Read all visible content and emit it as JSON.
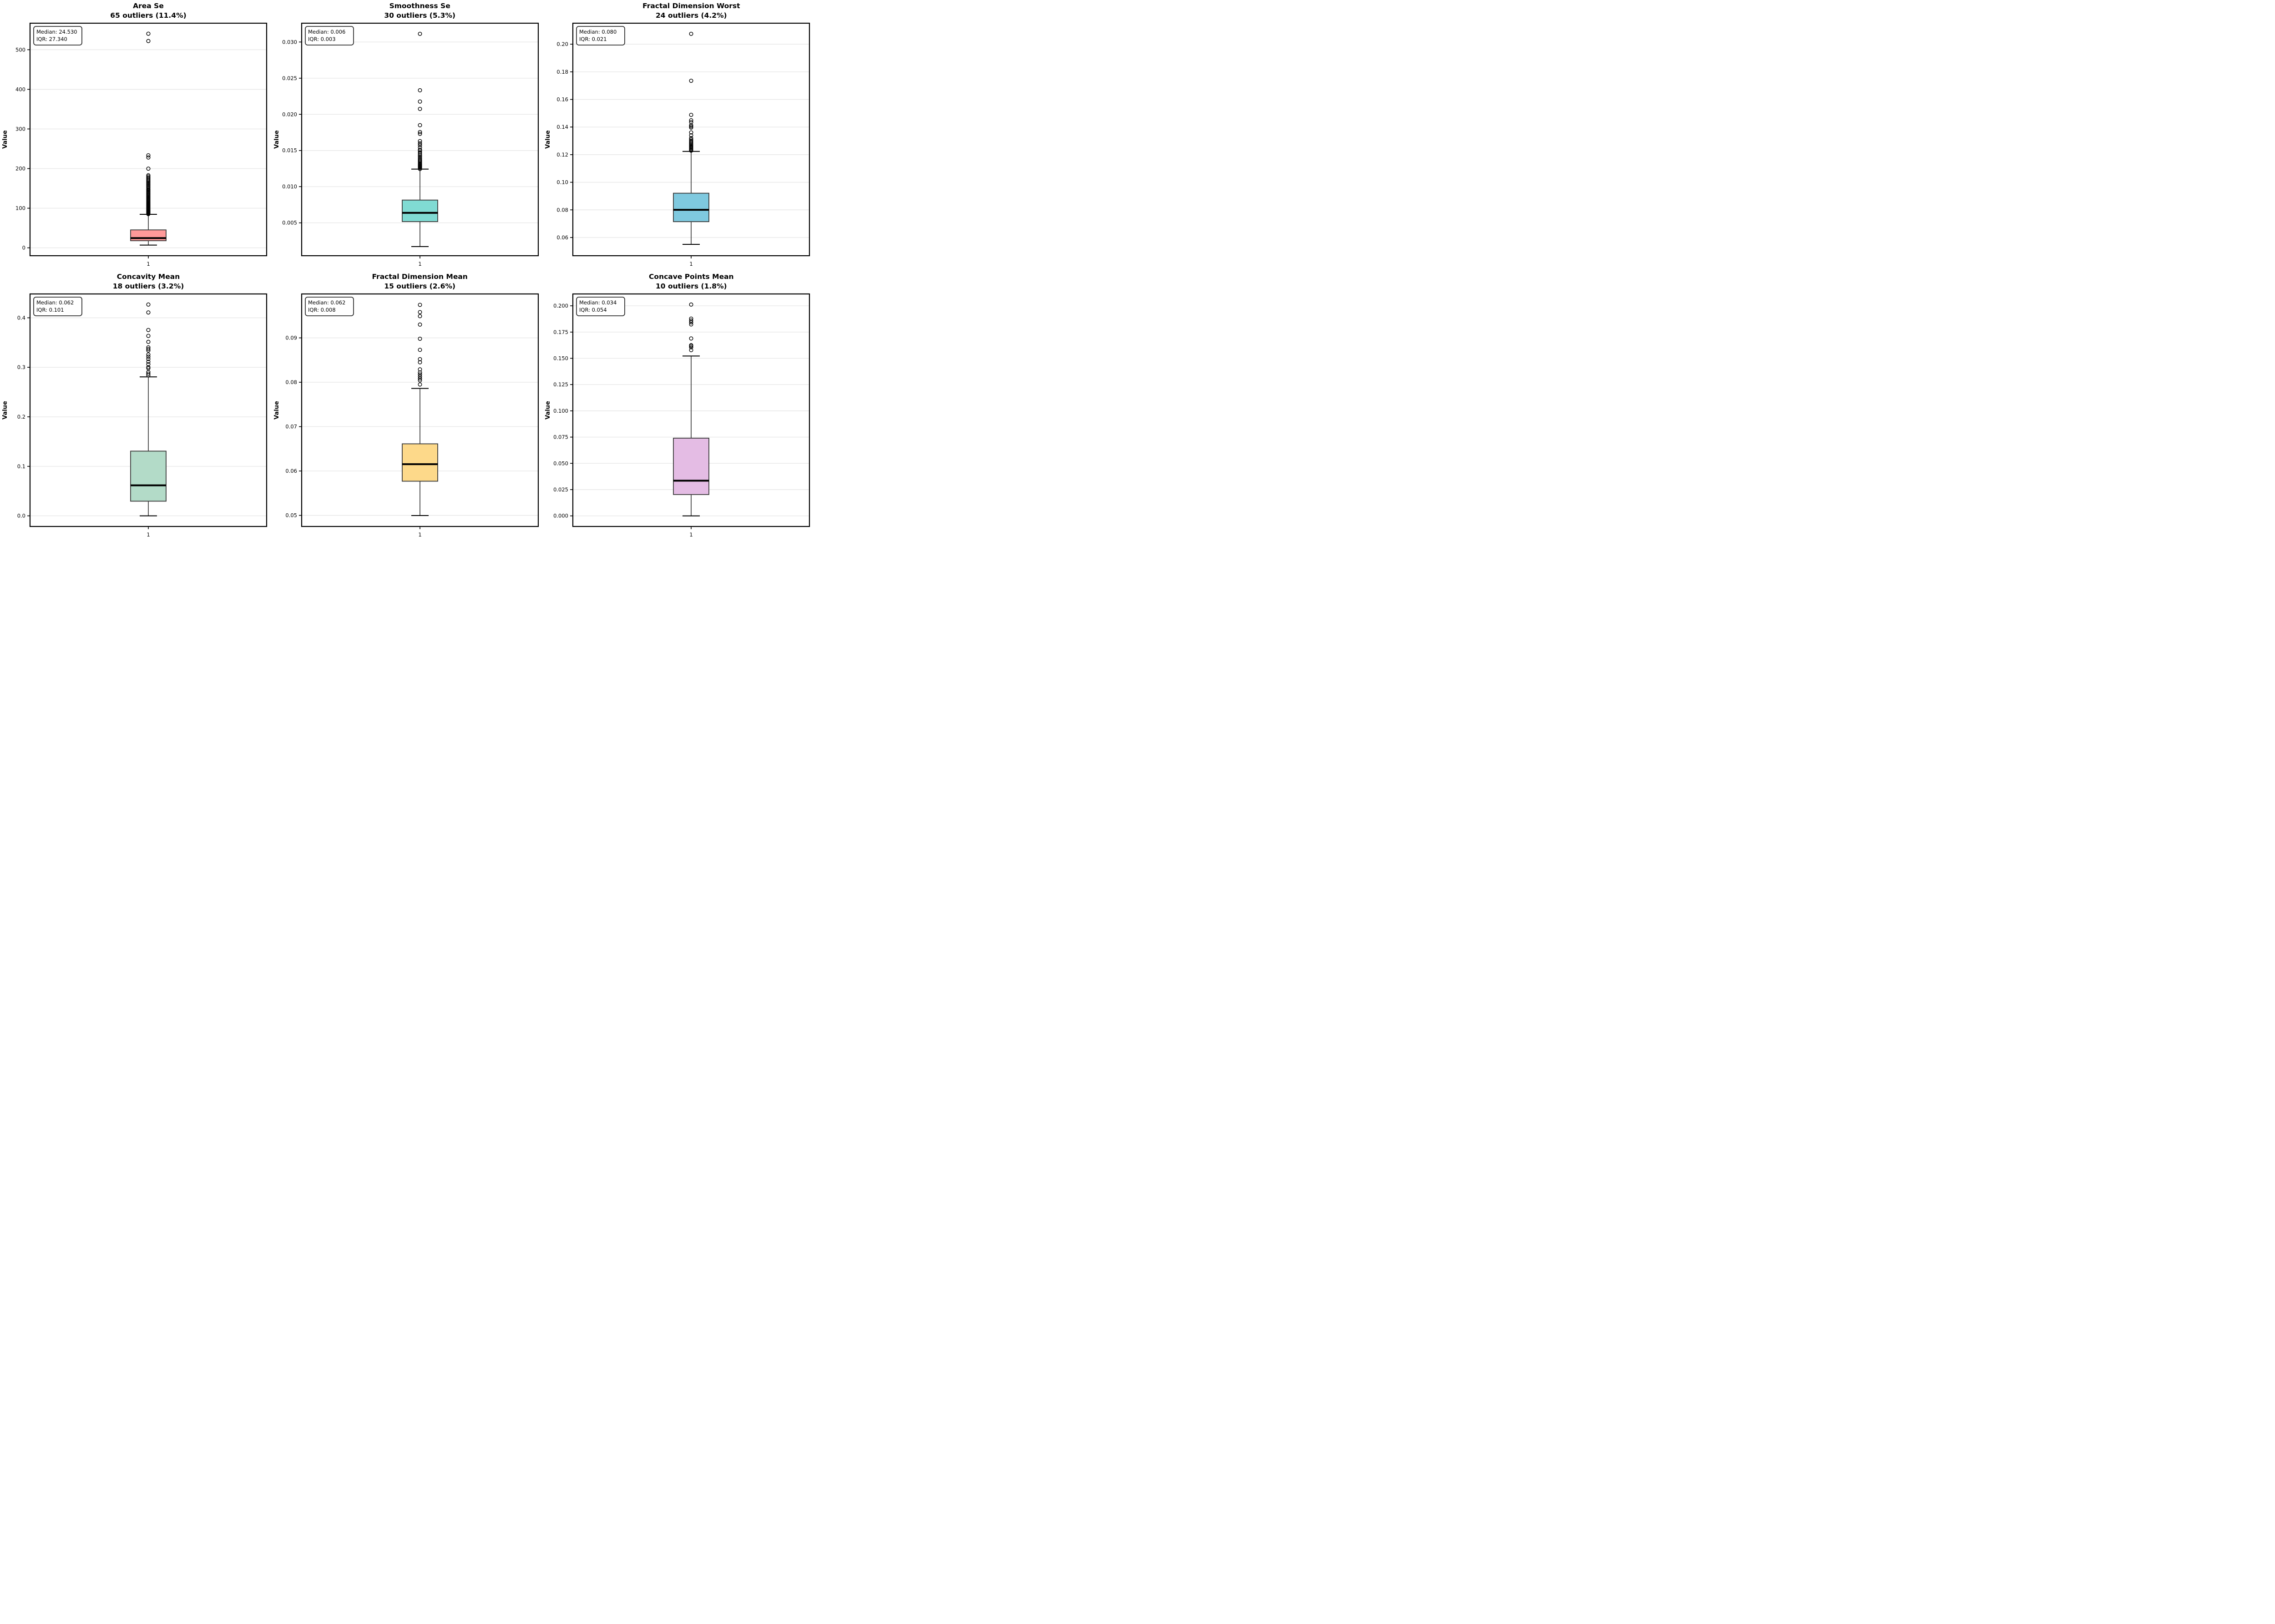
{
  "figure": {
    "background": "#ffffff",
    "columns": 3,
    "rows": 2
  },
  "style": {
    "box_edge_color": "#3a3a3a",
    "median_color": "#000000",
    "whisker_color": "#000000",
    "grid_color": "#e7e7e7",
    "spine_color": "#000000",
    "annotation_border": "#333333",
    "annotation_fill": "#ffffff",
    "outlier_color": "#000000"
  },
  "chart_data": [
    {
      "type": "box",
      "key": "area-se",
      "title": "Area Se",
      "subtitle": "65 outliers (11.4%)",
      "annotation_lines": [
        "Median: 24.530",
        "IQR: 27.340"
      ],
      "ylabel": "Value",
      "x_tick": "1",
      "color": "#ff9999",
      "ylim": [
        -20,
        567
      ],
      "yticks": [
        0,
        100,
        200,
        300,
        400,
        500
      ],
      "yticklabels": [
        "0",
        "100",
        "200",
        "300",
        "400",
        "500"
      ],
      "box": {
        "q1": 17.85,
        "median": 24.53,
        "q3": 45.19,
        "whisker_low": 6.8,
        "whisker_high": 84.5
      },
      "outliers": [
        85.2,
        86.1,
        87.0,
        87.8,
        88.5,
        89.3,
        90.2,
        91.0,
        91.9,
        92.7,
        93.5,
        94.4,
        95.2,
        96.1,
        97.0,
        98.0,
        99.0,
        100.1,
        101.2,
        102.4,
        103.6,
        104.9,
        106.2,
        107.5,
        108.9,
        110.3,
        111.8,
        113.3,
        114.8,
        116.4,
        118.0,
        119.7,
        121.4,
        123.1,
        124.9,
        126.7,
        128.6,
        130.5,
        132.5,
        134.5,
        136.6,
        138.7,
        140.9,
        142.5,
        144.6,
        146.5,
        148.0,
        151.0,
        153.5,
        156.0,
        158.5,
        161.0,
        163.5,
        166.0,
        168.5,
        171.0,
        174.0,
        177.0,
        180.0,
        183.0,
        199.8,
        228.0,
        233.5,
        522.0,
        540.5
      ]
    },
    {
      "type": "box",
      "key": "smoothness-se",
      "title": "Smoothness Se",
      "subtitle": "30 outliers (5.3%)",
      "annotation_lines": [
        "Median: 0.006",
        "IQR: 0.003"
      ],
      "ylabel": "Value",
      "x_tick": "1",
      "color": "#80dbd3",
      "ylim": [
        0.00045,
        0.0326
      ],
      "yticks": [
        0.005,
        0.01,
        0.015,
        0.02,
        0.025,
        0.03
      ],
      "yticklabels": [
        "0.005",
        "0.010",
        "0.015",
        "0.020",
        "0.025",
        "0.030"
      ],
      "box": {
        "q1": 0.005169,
        "median": 0.00638,
        "q3": 0.008146,
        "whisker_low": 0.001713,
        "whisker_high": 0.01243
      },
      "outliers": [
        0.01245,
        0.01259,
        0.01273,
        0.01281,
        0.0129,
        0.013,
        0.01311,
        0.01323,
        0.01336,
        0.0135,
        0.01365,
        0.01381,
        0.01398,
        0.01416,
        0.01435,
        0.01455,
        0.01476,
        0.01498,
        0.0151,
        0.01543,
        0.01575,
        0.016,
        0.0163,
        0.0173,
        0.01755,
        0.0185,
        0.02075,
        0.02177,
        0.02333,
        0.03113
      ]
    },
    {
      "type": "box",
      "key": "fractal-dimension-worst",
      "title": "Fractal Dimension Worst",
      "subtitle": "24 outliers (4.2%)",
      "annotation_lines": [
        "Median: 0.080",
        "IQR: 0.021"
      ],
      "ylabel": "Value",
      "x_tick": "1",
      "color": "#7fc9df",
      "ylim": [
        0.0468,
        0.2152
      ],
      "yticks": [
        0.06,
        0.08,
        0.1,
        0.12,
        0.14,
        0.16,
        0.18,
        0.2
      ],
      "yticklabels": [
        "0.06",
        "0.08",
        "0.10",
        "0.12",
        "0.14",
        "0.16",
        "0.18",
        "0.20"
      ],
      "box": {
        "q1": 0.07146,
        "median": 0.08004,
        "q3": 0.09208,
        "whisker_low": 0.05504,
        "whisker_high": 0.12235
      },
      "outliers": [
        0.1229,
        0.1232,
        0.12385,
        0.1245,
        0.1251,
        0.1257,
        0.12635,
        0.127,
        0.1277,
        0.12845,
        0.12925,
        0.1301,
        0.131,
        0.132,
        0.134,
        0.1361,
        0.1396,
        0.14045,
        0.1413,
        0.1435,
        0.1449,
        0.1488,
        0.1735,
        0.2075
      ]
    },
    {
      "type": "box",
      "key": "concavity-mean",
      "title": "Concavity Mean",
      "subtitle": "18 outliers (3.2%)",
      "annotation_lines": [
        "Median: 0.062",
        "IQR: 0.101"
      ],
      "ylabel": "Value",
      "x_tick": "1",
      "color": "#b3dbc8",
      "ylim": [
        -0.0215,
        0.4482
      ],
      "yticks": [
        0.0,
        0.1,
        0.2,
        0.3,
        0.4
      ],
      "yticklabels": [
        "0.0",
        "0.1",
        "0.2",
        "0.3",
        "0.4"
      ],
      "box": {
        "q1": 0.02956,
        "median": 0.06154,
        "q3": 0.1307,
        "whisker_low": 0.0,
        "whisker_high": 0.2807
      },
      "outliers": [
        0.2839,
        0.2871,
        0.2905,
        0.298,
        0.3003,
        0.3063,
        0.3113,
        0.3169,
        0.3215,
        0.3258,
        0.3339,
        0.337,
        0.3403,
        0.3514,
        0.3635,
        0.3754,
        0.4108,
        0.4268
      ]
    },
    {
      "type": "box",
      "key": "fractal-dimension-mean",
      "title": "Fractal Dimension Mean",
      "subtitle": "15 outliers (2.6%)",
      "annotation_lines": [
        "Median: 0.062",
        "IQR: 0.008"
      ],
      "ylabel": "Value",
      "x_tick": "1",
      "color": "#fdd98a",
      "ylim": [
        0.0475,
        0.0999
      ],
      "yticks": [
        0.05,
        0.06,
        0.07,
        0.08,
        0.09
      ],
      "yticklabels": [
        "0.05",
        "0.06",
        "0.07",
        "0.08",
        "0.09"
      ],
      "box": {
        "q1": 0.0577,
        "median": 0.06154,
        "q3": 0.06612,
        "whisker_low": 0.04996,
        "whisker_high": 0.07861
      },
      "outliers": [
        0.0795,
        0.08043,
        0.08085,
        0.0813,
        0.08175,
        0.0822,
        0.0829,
        0.0845,
        0.0852,
        0.0873,
        0.0898,
        0.093,
        0.0949,
        0.0958,
        0.09744
      ]
    },
    {
      "type": "box",
      "key": "concave-points-mean",
      "title": "Concave Points Mean",
      "subtitle": "10 outliers (1.8%)",
      "annotation_lines": [
        "Median: 0.034",
        "IQR: 0.054"
      ],
      "ylabel": "Value",
      "x_tick": "1",
      "color": "#e4bce4",
      "ylim": [
        -0.0101,
        0.2113
      ],
      "yticks": [
        0.0,
        0.025,
        0.05,
        0.075,
        0.1,
        0.125,
        0.15,
        0.175,
        0.2
      ],
      "yticklabels": [
        "0.000",
        "0.025",
        "0.050",
        "0.075",
        "0.100",
        "0.125",
        "0.150",
        "0.175",
        "0.200"
      ],
      "box": {
        "q1": 0.02031,
        "median": 0.0335,
        "q3": 0.074,
        "whisker_low": 0.0,
        "whisker_high": 0.1522
      },
      "outliers": [
        0.1578,
        0.1605,
        0.1618,
        0.1625,
        0.1689,
        0.1823,
        0.1843,
        0.186,
        0.1878,
        0.2012
      ]
    }
  ]
}
